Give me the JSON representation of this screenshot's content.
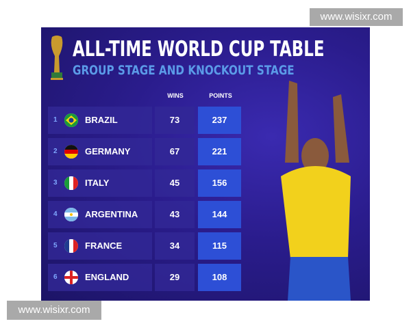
{
  "watermarks": [
    "www.wisixr.com",
    "www.wisixr.com"
  ],
  "title": "ALL-TIME WORLD CUP TABLE",
  "subtitle": "GROUP STAGE AND KNOCKOUT STAGE",
  "columns": {
    "wins": "WINS",
    "points": "POINTS"
  },
  "rows": [
    {
      "rank": "1",
      "country": "BRAZIL",
      "wins": "73",
      "points": "237",
      "flag": "brazil-flag"
    },
    {
      "rank": "2",
      "country": "GERMANY",
      "wins": "67",
      "points": "221",
      "flag": "germany-flag"
    },
    {
      "rank": "3",
      "country": "ITALY",
      "wins": "45",
      "points": "156",
      "flag": "italy-flag"
    },
    {
      "rank": "4",
      "country": "ARGENTINA",
      "wins": "43",
      "points": "144",
      "flag": "argentina-flag"
    },
    {
      "rank": "5",
      "country": "FRANCE",
      "wins": "34",
      "points": "115",
      "flag": "france-flag"
    },
    {
      "rank": "6",
      "country": "ENGLAND",
      "wins": "29",
      "points": "108",
      "flag": "england-flag"
    }
  ],
  "colors": {
    "background": "#2a1c8c",
    "points_cell": "#2d4fd6",
    "subtitle": "#5b9be8"
  }
}
